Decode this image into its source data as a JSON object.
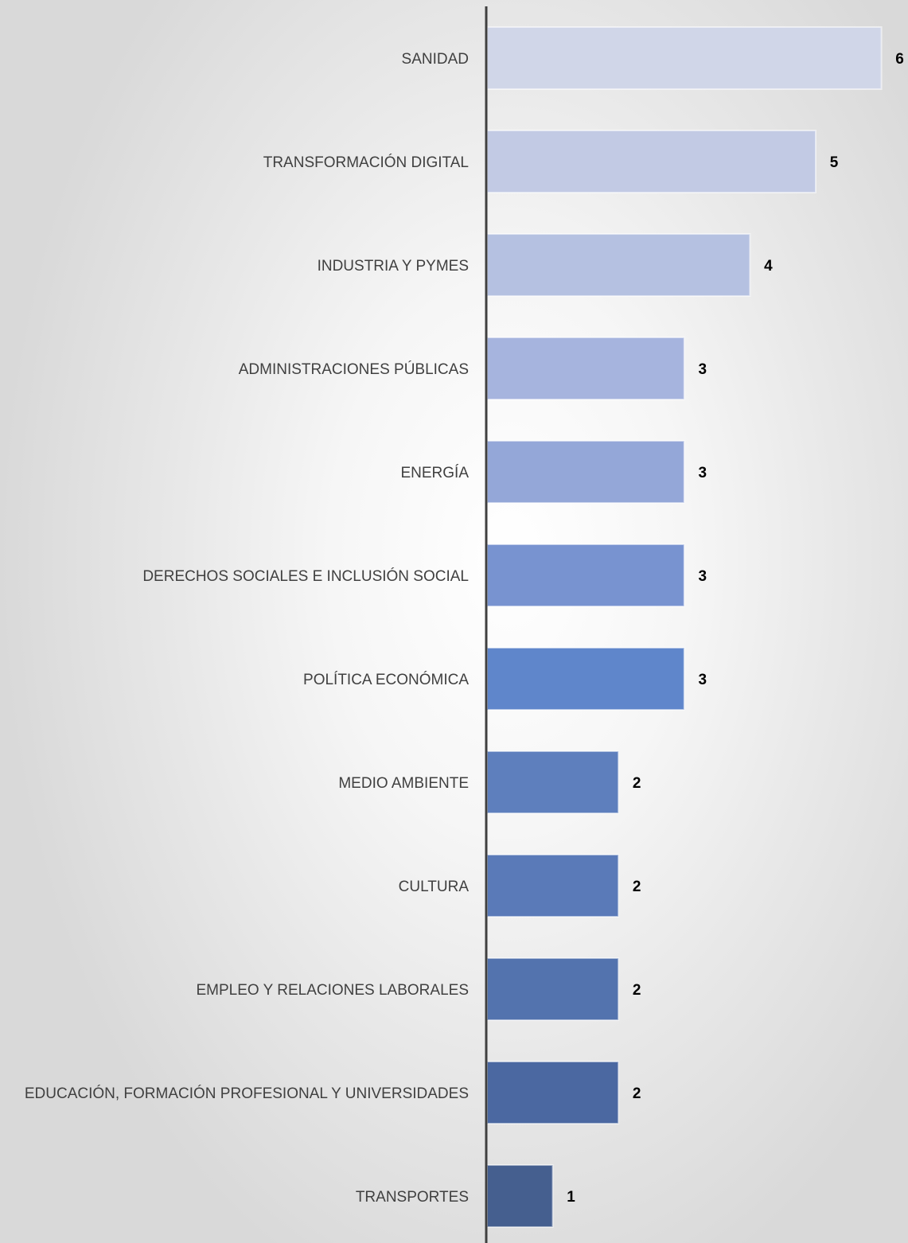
{
  "chart_data": {
    "type": "bar",
    "orientation": "horizontal",
    "categories": [
      "SANIDAD",
      "TRANSFORMACIÓN DIGITAL",
      "INDUSTRIA Y PYMES",
      "ADMINISTRACIONES PÚBLICAS",
      "ENERGÍA",
      "DERECHOS SOCIALES E INCLUSIÓN SOCIAL",
      "POLÍTICA ECONÓMICA",
      "MEDIO AMBIENTE",
      "CULTURA",
      "EMPLEO Y RELACIONES LABORALES",
      "EDUCACIÓN, FORMACIÓN PROFESIONAL Y UNIVERSIDADES",
      "TRANSPORTES"
    ],
    "values": [
      6,
      5,
      4,
      3,
      3,
      3,
      3,
      2,
      2,
      2,
      2,
      1
    ],
    "value_labels": [
      "6",
      "5",
      "4",
      "3",
      "3",
      "3",
      "3",
      "2",
      "2",
      "2",
      "2",
      "1"
    ],
    "bar_colors": [
      "#d0d6e8",
      "#c2cae4",
      "#b5c1e1",
      "#a6b4de",
      "#94a7d8",
      "#7893d0",
      "#5f86cb",
      "#5e7fbd",
      "#5a7ab8",
      "#5373ae",
      "#4b68a1",
      "#455f8f"
    ],
    "title": "",
    "xlabel": "",
    "ylabel": "",
    "xlim": [
      0,
      6
    ],
    "grid": false,
    "legend": "none"
  }
}
